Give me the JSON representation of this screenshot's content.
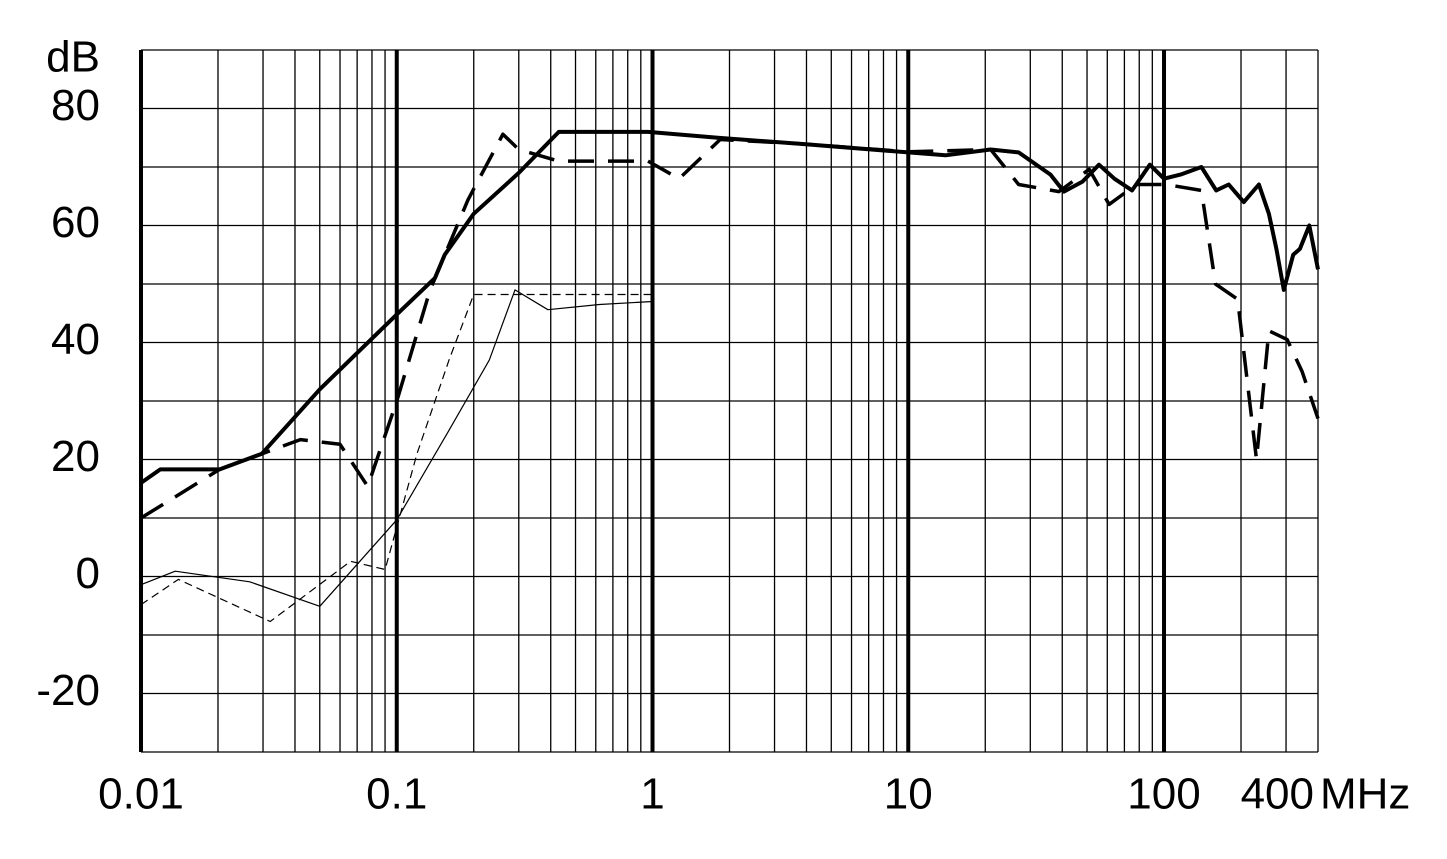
{
  "chart_data": {
    "type": "line",
    "x_label": "MHz",
    "y_label": "dB",
    "xscale": "log",
    "xlim": [
      0.01,
      400
    ],
    "ylim": [
      -30,
      90
    ],
    "xticks": [
      0.01,
      0.1,
      1,
      10,
      100,
      400
    ],
    "yticks": [
      -20,
      0,
      20,
      40,
      60,
      80
    ],
    "y_minor_ticks": [
      -30,
      -10,
      10,
      30,
      50,
      70,
      90
    ],
    "grid": true,
    "series": [
      {
        "color": "#000000",
        "line_style": "solid",
        "line_width": 4,
        "x": [
          0.01,
          0.0119,
          0.0203,
          0.0297,
          0.05,
          0.1,
          0.141,
          0.154,
          0.2,
          0.3,
          0.43,
          0.96,
          1.8,
          3.7,
          10,
          14,
          21,
          27,
          36,
          40.6,
          48,
          55.7,
          64,
          75,
          88,
          100,
          116,
          140,
          160,
          179,
          205,
          235,
          257,
          275,
          294,
          320,
          340,
          370,
          400
        ],
        "values": [
          16,
          18.3,
          18.3,
          21,
          32,
          44.8,
          51,
          55,
          62,
          69,
          76,
          76,
          75,
          74,
          72.5,
          72,
          73,
          72.5,
          68.7,
          65.8,
          67.5,
          70.4,
          68,
          66,
          70.4,
          68,
          68.7,
          70,
          66,
          67,
          64,
          67,
          62,
          56,
          49,
          55,
          56,
          60,
          52.5
        ]
      },
      {
        "color": "#000000",
        "line_style": "dashed",
        "line_width": 3.5,
        "x": [
          0.01,
          0.0203,
          0.042,
          0.06,
          0.077,
          0.1,
          0.135,
          0.19,
          0.26,
          0.3,
          0.43,
          0.96,
          1.27,
          1.84,
          3.7,
          10,
          21,
          27,
          38.8,
          51,
          61,
          78,
          102,
          140,
          159,
          194,
          230,
          257,
          303,
          347,
          400
        ],
        "values": [
          10,
          18.3,
          23.4,
          22.6,
          15.4,
          30,
          49,
          64.4,
          75.6,
          73,
          71,
          71,
          68,
          74.7,
          74,
          72.6,
          73,
          67,
          65.8,
          69.6,
          63.6,
          67,
          67,
          66,
          50,
          47.4,
          20,
          42,
          40.5,
          35,
          27
        ]
      },
      {
        "color": "#000000",
        "line_style": "solid",
        "line_width": 1.2,
        "x": [
          0.01,
          0.0136,
          0.0266,
          0.05,
          0.1,
          0.16,
          0.23,
          0.29,
          0.39,
          0.62,
          1
        ],
        "values": [
          -1.4,
          0.9,
          -0.9,
          -5.1,
          9.7,
          25,
          37,
          49,
          45.6,
          46.5,
          47
        ]
      },
      {
        "color": "#000000",
        "line_style": "dashed",
        "line_width": 1.2,
        "x": [
          0.01,
          0.014,
          0.032,
          0.066,
          0.09,
          0.12,
          0.16,
          0.2,
          1
        ],
        "values": [
          -4.8,
          -0.5,
          -7.7,
          2.6,
          1.2,
          21,
          37,
          48.2,
          48.2
        ]
      }
    ]
  }
}
